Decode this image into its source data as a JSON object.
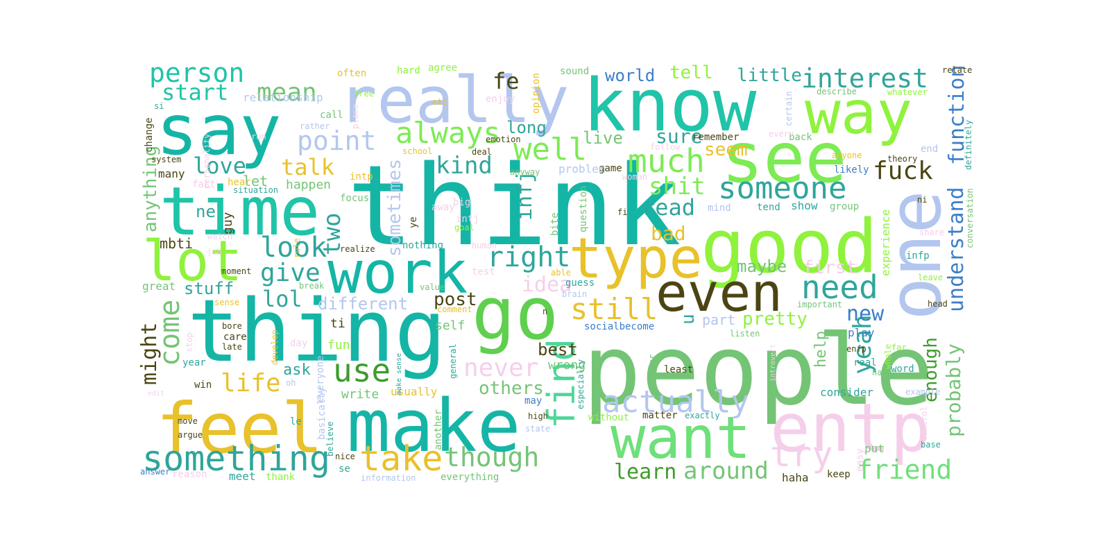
{
  "words": [
    {
      "text": "think",
      "color": "#15b5a6"
    },
    {
      "text": "people",
      "color": "#74c476"
    },
    {
      "text": "know",
      "color": "#20c4a8"
    },
    {
      "text": "thing",
      "color": "#15b5a6"
    },
    {
      "text": "really",
      "color": "#b3c6ee"
    },
    {
      "text": "say",
      "color": "#15b5a6"
    },
    {
      "text": "go",
      "color": "#5fcf4e"
    },
    {
      "text": "make",
      "color": "#15b5a6"
    },
    {
      "text": "feel",
      "color": "#e8c12b"
    },
    {
      "text": "good",
      "color": "#8ff23c"
    },
    {
      "text": "see",
      "color": "#7deb54"
    },
    {
      "text": "way",
      "color": "#8ff23c"
    },
    {
      "text": "one",
      "color": "#b3c6ee"
    },
    {
      "text": "want",
      "color": "#6ee07a"
    },
    {
      "text": "entp",
      "color": "#f5cfea"
    },
    {
      "text": "time",
      "color": "#20c4a8"
    },
    {
      "text": "work",
      "color": "#15b5a6"
    },
    {
      "text": "type",
      "color": "#e8c12b"
    },
    {
      "text": "even",
      "color": "#4a4512"
    },
    {
      "text": "lot",
      "color": "#8ff23c"
    },
    {
      "text": "something",
      "color": "#2fa59b"
    },
    {
      "text": "take",
      "color": "#e8c12b"
    },
    {
      "text": "use",
      "color": "#3e9c2c"
    },
    {
      "text": "find",
      "color": "#4fd69a"
    },
    {
      "text": "actually",
      "color": "#b3c6ee"
    },
    {
      "text": "try",
      "color": "#f5cfea"
    },
    {
      "text": "friend",
      "color": "#6ee07a"
    },
    {
      "text": "someone",
      "color": "#2fa59b"
    },
    {
      "text": "much",
      "color": "#7deb54"
    },
    {
      "text": "well",
      "color": "#7deb54"
    },
    {
      "text": "always",
      "color": "#7deb54"
    },
    {
      "text": "point",
      "color": "#b3c6ee"
    },
    {
      "text": "mean",
      "color": "#74c476"
    },
    {
      "text": "person",
      "color": "#20c4a8"
    },
    {
      "text": "start",
      "color": "#20c4a8"
    },
    {
      "text": "interest",
      "color": "#2fa59b"
    },
    {
      "text": "need",
      "color": "#2fa59b"
    },
    {
      "text": "right",
      "color": "#2fa59b"
    },
    {
      "text": "still",
      "color": "#e8c12b"
    },
    {
      "text": "come",
      "color": "#74c476"
    },
    {
      "text": "look",
      "color": "#2fa59b"
    },
    {
      "text": "give",
      "color": "#2fa59b"
    },
    {
      "text": "lol",
      "color": "#2fa59b"
    },
    {
      "text": "love",
      "color": "#2fa59b"
    },
    {
      "text": "talk",
      "color": "#e8c12b"
    },
    {
      "text": "kind",
      "color": "#2fa59b"
    },
    {
      "text": "fuck",
      "color": "#4a4512"
    },
    {
      "text": "shit",
      "color": "#7deb54"
    },
    {
      "text": "read",
      "color": "#2fa59b"
    },
    {
      "text": "though",
      "color": "#74c476"
    },
    {
      "text": "life",
      "color": "#e8c12b"
    },
    {
      "text": "never",
      "color": "#f5cfea"
    },
    {
      "text": "around",
      "color": "#74c476"
    },
    {
      "text": "learn",
      "color": "#3e9c2c"
    },
    {
      "text": "yeah",
      "color": "#2fa59b"
    },
    {
      "text": "others",
      "color": "#74c476"
    },
    {
      "text": "function",
      "color": "#3b7ec9"
    },
    {
      "text": "understand",
      "color": "#3b7ec9"
    },
    {
      "text": "probably",
      "color": "#74c476"
    },
    {
      "text": "enough",
      "color": "#3e9c2c"
    },
    {
      "text": "pretty",
      "color": "#8ff23c"
    },
    {
      "text": "new",
      "color": "#3b7ec9"
    },
    {
      "text": "maybe",
      "color": "#74c476"
    },
    {
      "text": "first",
      "color": "#f5cfea"
    },
    {
      "text": "idea",
      "color": "#f5cfea"
    },
    {
      "text": "different",
      "color": "#b3c6ee"
    },
    {
      "text": "post",
      "color": "#4a4512"
    },
    {
      "text": "bad",
      "color": "#e8c12b"
    },
    {
      "text": "sure",
      "color": "#2fa59b"
    },
    {
      "text": "seem",
      "color": "#e8c12b"
    },
    {
      "text": "fe",
      "color": "#4a4512"
    },
    {
      "text": "long",
      "color": "#2fa59b"
    },
    {
      "text": "live",
      "color": "#74c476"
    },
    {
      "text": "tell",
      "color": "#8ff23c"
    },
    {
      "text": "world",
      "color": "#3b7ec9"
    },
    {
      "text": "little",
      "color": "#2fa59b"
    },
    {
      "text": "two",
      "color": "#2fa59b"
    },
    {
      "text": "infj",
      "color": "#2fa59b"
    },
    {
      "text": "sometimes",
      "color": "#b3c6ee"
    },
    {
      "text": "anything",
      "color": "#74c476"
    },
    {
      "text": "might",
      "color": "#4a4512"
    },
    {
      "text": "stuff",
      "color": "#2fa59b"
    },
    {
      "text": "best",
      "color": "#4a4512"
    },
    {
      "text": "wrong",
      "color": "#74c476"
    },
    {
      "text": "help",
      "color": "#74c476"
    },
    {
      "text": "ask",
      "color": "#2fa59b"
    },
    {
      "text": "part",
      "color": "#b3c6ee"
    },
    {
      "text": "u",
      "color": "#2fa59b"
    },
    {
      "text": "mbti",
      "color": "#4a4512"
    },
    {
      "text": "ne",
      "color": "#2fa59b"
    },
    {
      "text": "let",
      "color": "#74c476"
    },
    {
      "text": "happen",
      "color": "#74c476"
    },
    {
      "text": "guy",
      "color": "#4a4512"
    },
    {
      "text": "write",
      "color": "#74c476"
    },
    {
      "text": "usually",
      "color": "#e8c12b"
    },
    {
      "text": "fun",
      "color": "#8ff23c"
    },
    {
      "text": "self",
      "color": "#74c476"
    },
    {
      "text": "ti",
      "color": "#4a4512"
    },
    {
      "text": "consider",
      "color": "#2fa59b"
    },
    {
      "text": "play",
      "color": "#3b7ec9"
    },
    {
      "text": "keep",
      "color": "#4a4512"
    },
    {
      "text": "haha",
      "color": "#4a4512"
    },
    {
      "text": "put",
      "color": "#74c476"
    },
    {
      "text": "meet",
      "color": "#2fa59b"
    },
    {
      "text": "thank",
      "color": "#8ff23c"
    },
    {
      "text": "everything",
      "color": "#74c476"
    },
    {
      "text": "matter",
      "color": "#4a4512"
    },
    {
      "text": "show",
      "color": "#2fa59b"
    },
    {
      "text": "mind",
      "color": "#b3c6ee"
    },
    {
      "text": "tend",
      "color": "#2fa59b"
    },
    {
      "text": "group",
      "color": "#74c476"
    },
    {
      "text": "experience",
      "color": "#8ff23c"
    },
    {
      "text": "infp",
      "color": "#2fa59b"
    },
    {
      "text": "ni",
      "color": "#4a4512"
    },
    {
      "text": "relationship",
      "color": "#b3c6ee"
    },
    {
      "text": "often",
      "color": "#e8c12b"
    },
    {
      "text": "hard",
      "color": "#8ff23c"
    },
    {
      "text": "agree",
      "color": "#8ff23c"
    },
    {
      "text": "free",
      "color": "#8ff23c"
    },
    {
      "text": "sound",
      "color": "#74c476"
    },
    {
      "text": "opinion",
      "color": "#e8c12b"
    },
    {
      "text": "etc",
      "color": "#e8c12b"
    },
    {
      "text": "enjoy",
      "color": "#f5cfea"
    },
    {
      "text": "describe",
      "color": "#74c476"
    },
    {
      "text": "certain",
      "color": "#b3c6ee"
    },
    {
      "text": "whatever",
      "color": "#8ff23c"
    },
    {
      "text": "relate",
      "color": "#4a4512"
    },
    {
      "text": "remember",
      "color": "#4a4512"
    },
    {
      "text": "back",
      "color": "#74c476"
    },
    {
      "text": "likely",
      "color": "#3b7ec9"
    },
    {
      "text": "anyone",
      "color": "#e8c12b"
    },
    {
      "text": "theory",
      "color": "#4a4512"
    },
    {
      "text": "end",
      "color": "#b3c6ee"
    },
    {
      "text": "definitely",
      "color": "#2fa59b"
    },
    {
      "text": "conversation",
      "color": "#74c476"
    },
    {
      "text": "change",
      "color": "#4a4512"
    },
    {
      "text": "call",
      "color": "#74c476"
    },
    {
      "text": "rather",
      "color": "#b3c6ee"
    },
    {
      "text": "personality",
      "color": "#f5cfea"
    },
    {
      "text": "system",
      "color": "#4a4512"
    },
    {
      "text": "many",
      "color": "#4a4512"
    },
    {
      "text": "fact",
      "color": "#f5cfea"
    },
    {
      "text": "hear",
      "color": "#e8c12b"
    },
    {
      "text": "situation",
      "color": "#2fa59b"
    },
    {
      "text": "run",
      "color": "#f5cfea"
    },
    {
      "text": "emotion",
      "color": "#4a4512"
    },
    {
      "text": "school",
      "color": "#e8c12b"
    },
    {
      "text": "deal",
      "color": "#4a4512"
    },
    {
      "text": "intp",
      "color": "#e8c12b"
    },
    {
      "text": "game",
      "color": "#4a4512"
    },
    {
      "text": "problem",
      "color": "#b3c6ee"
    },
    {
      "text": "anyway",
      "color": "#74c476"
    },
    {
      "text": "woman",
      "color": "#f5cfea"
    },
    {
      "text": "follow",
      "color": "#f5cfea"
    },
    {
      "text": "focus",
      "color": "#74c476"
    },
    {
      "text": "away",
      "color": "#f5cfea"
    },
    {
      "text": "big",
      "color": "#f5cfea"
    },
    {
      "text": "intj",
      "color": "#f5cfea"
    },
    {
      "text": "ye",
      "color": "#4a4512"
    },
    {
      "text": "goal",
      "color": "#8ff23c"
    },
    {
      "text": "question",
      "color": "#74c476"
    },
    {
      "text": "bite",
      "color": "#74c476"
    },
    {
      "text": "fi",
      "color": "#4a4512"
    },
    {
      "text": "watch",
      "color": "#f5cfea"
    },
    {
      "text": "rule",
      "color": "#e8c12b"
    },
    {
      "text": "realize",
      "color": "#4a4512"
    },
    {
      "text": "nothing",
      "color": "#2fa59b"
    },
    {
      "text": "human",
      "color": "#f5cfea"
    },
    {
      "text": "job",
      "color": "#f5cfea"
    },
    {
      "text": "moment",
      "color": "#4a4512"
    },
    {
      "text": "great",
      "color": "#74c476"
    },
    {
      "text": "break",
      "color": "#74c476"
    },
    {
      "text": "value",
      "color": "#74c476"
    },
    {
      "text": "test",
      "color": "#f5cfea"
    },
    {
      "text": "able",
      "color": "#e8c12b"
    },
    {
      "text": "guess",
      "color": "#2fa59b"
    },
    {
      "text": "brain",
      "color": "#b3c6ee"
    },
    {
      "text": "comment",
      "color": "#e8c12b"
    },
    {
      "text": "sense",
      "color": "#e8c12b"
    },
    {
      "text": "important",
      "color": "#74c476"
    },
    {
      "text": "head",
      "color": "#4a4512"
    },
    {
      "text": "leave",
      "color": "#8ff23c"
    },
    {
      "text": "share",
      "color": "#f5cfea"
    },
    {
      "text": "n",
      "color": "#4a4512"
    },
    {
      "text": "socialbecome",
      "color": "#3b7ec9"
    },
    {
      "text": "listen",
      "color": "#74c476"
    },
    {
      "text": "bore",
      "color": "#4a4512"
    },
    {
      "text": "care",
      "color": "#4a4512"
    },
    {
      "text": "late",
      "color": "#4a4512"
    },
    {
      "text": "stop",
      "color": "#f5cfea"
    },
    {
      "text": "develop",
      "color": "#e8c12b"
    },
    {
      "text": "day",
      "color": "#f5cfea"
    },
    {
      "text": "make sense",
      "color": "#2fa59b"
    },
    {
      "text": "general",
      "color": "#2fa59b"
    },
    {
      "text": "enfp",
      "color": "#4a4512"
    },
    {
      "text": "far",
      "color": "#8ff23c"
    },
    {
      "text": "whole",
      "color": "#8ff23c"
    },
    {
      "text": "real",
      "color": "#2fa59b"
    },
    {
      "text": "either",
      "color": "#74c476"
    },
    {
      "text": "least",
      "color": "#4a4512"
    },
    {
      "text": "introvert",
      "color": "#f5cfea"
    },
    {
      "text": "happy",
      "color": "#74c476"
    },
    {
      "text": "word",
      "color": "#2fa59b"
    },
    {
      "text": "example",
      "color": "#b3c6ee"
    },
    {
      "text": "year",
      "color": "#2fa59b"
    },
    {
      "text": "win",
      "color": "#4a4512"
    },
    {
      "text": "edit",
      "color": "#f5cfea"
    },
    {
      "text": "oh",
      "color": "#b3c6ee"
    },
    {
      "text": "everyone",
      "color": "#b3c6ee"
    },
    {
      "text": "figure",
      "color": "#4a4512"
    },
    {
      "text": "especially",
      "color": "#2fa59b"
    },
    {
      "text": "without",
      "color": "#8ff23c"
    },
    {
      "text": "exactly",
      "color": "#2fa59b"
    },
    {
      "text": "high",
      "color": "#4a4512"
    },
    {
      "text": "state",
      "color": "#b3c6ee"
    },
    {
      "text": "another",
      "color": "#74c476"
    },
    {
      "text": "believe",
      "color": "#2fa59b"
    },
    {
      "text": "basically",
      "color": "#b3c6ee"
    },
    {
      "text": "may",
      "color": "#3b7ec9"
    },
    {
      "text": "move",
      "color": "#4a4512"
    },
    {
      "text": "argue",
      "color": "#4a4512"
    },
    {
      "text": "le",
      "color": "#2fa59b"
    },
    {
      "text": "nice",
      "color": "#4a4512"
    },
    {
      "text": "se",
      "color": "#2fa59b"
    },
    {
      "text": "information",
      "color": "#b3c6ee"
    },
    {
      "text": "answer",
      "color": "#3b7ec9"
    },
    {
      "text": "reason",
      "color": "#f5cfea"
    },
    {
      "text": "easy",
      "color": "#f5cfea"
    },
    {
      "text": "control",
      "color": "#f5cfea"
    },
    {
      "text": "base",
      "color": "#2fa59b"
    },
    {
      "text": "place",
      "color": "#f5cfea"
    },
    {
      "text": "si",
      "color": "#2fa59b"
    },
    {
      "text": "every",
      "color": "#f5cfea"
    }
  ]
}
